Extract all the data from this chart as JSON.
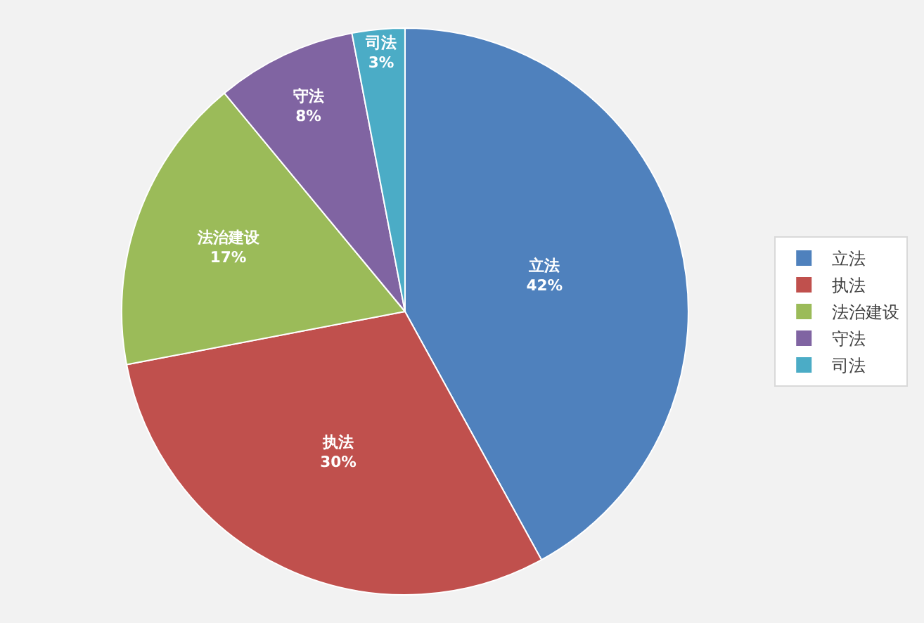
{
  "chart_data": {
    "type": "pie",
    "categories": [
      "立法",
      "执法",
      "法治建设",
      "守法",
      "司法"
    ],
    "values": [
      42,
      30,
      17,
      8,
      3
    ],
    "value_labels": [
      "42%",
      "30%",
      "17%",
      "8%",
      "3%"
    ],
    "colors": [
      "#4f81bd",
      "#c0504d",
      "#9bbb59",
      "#8064a2",
      "#4bacc6"
    ],
    "legend": "right"
  }
}
